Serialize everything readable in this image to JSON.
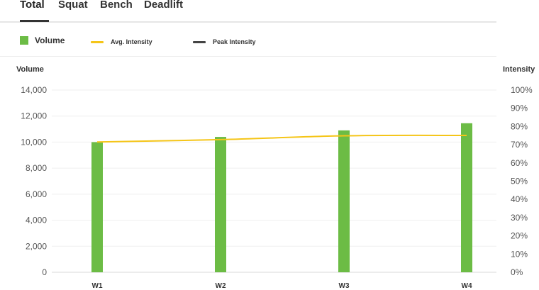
{
  "tabs": [
    {
      "label": "Total",
      "active": true
    },
    {
      "label": "Squat",
      "active": false
    },
    {
      "label": "Bench",
      "active": false
    },
    {
      "label": "Deadlift",
      "active": false
    }
  ],
  "legend": {
    "volume": {
      "label": "Volume",
      "color": "#6cbc45"
    },
    "avg_intensity": {
      "label": "Avg. Intensity",
      "color": "#f5c518"
    },
    "peak_intensity": {
      "label": "Peak Intensity",
      "color": "#444444"
    }
  },
  "axes": {
    "left_title": "Volume",
    "right_title": "Intensity"
  },
  "chart_data": {
    "type": "bar",
    "categories": [
      "W1",
      "W2",
      "W3",
      "W4"
    ],
    "series": [
      {
        "name": "Volume",
        "type": "bar",
        "axis": "left",
        "values": [
          10000,
          10400,
          10900,
          11450
        ],
        "color": "#6cbc45"
      },
      {
        "name": "Avg. Intensity",
        "type": "line",
        "axis": "right",
        "values": [
          71.5,
          72.8,
          74.9,
          75.1
        ],
        "color": "#f5c518"
      }
    ],
    "left_axis": {
      "ylim": [
        0,
        14000
      ],
      "ticks": [
        "0",
        "2,000",
        "4,000",
        "6,000",
        "8,000",
        "10,000",
        "12,000",
        "14,000"
      ]
    },
    "right_axis": {
      "ylim": [
        0,
        100
      ],
      "ticks": [
        "0%",
        "10%",
        "20%",
        "30%",
        "40%",
        "50%",
        "60%",
        "70%",
        "80%",
        "90%",
        "100%"
      ]
    },
    "grid": true,
    "legend_position": "top-left"
  }
}
